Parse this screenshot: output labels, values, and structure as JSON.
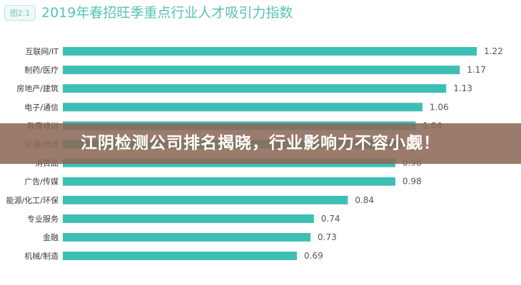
{
  "figure_badge": "图2.1",
  "overlay_headline": "江阴检测公司排名揭晓，行业影响力不容小觑！",
  "chart_data": {
    "type": "bar",
    "orientation": "horizontal",
    "title": "2019年春招旺季重点行业人才吸引力指数",
    "categories": [
      "互联网/IT",
      "制药/医疗",
      "房地产/建筑",
      "电子/通信",
      "教育培训",
      "交通/物流",
      "消费品",
      "广告/传媒",
      "能源/化工/环保",
      "专业服务",
      "金融",
      "机械/制造"
    ],
    "values": [
      1.22,
      1.17,
      1.13,
      1.06,
      1.04,
      1.0,
      0.98,
      0.98,
      0.84,
      0.74,
      0.73,
      0.69
    ],
    "value_labels": [
      "1.22",
      "1.17",
      "1.13",
      "1.06",
      "1.04",
      "",
      "0.98",
      "0.98",
      "0.84",
      "0.74",
      "0.73",
      "0.69"
    ],
    "bar_color": "#3dbfb5",
    "title_color": "#57c2b8",
    "xlim": [
      0,
      1.22
    ],
    "grid": false,
    "legend": "none"
  }
}
